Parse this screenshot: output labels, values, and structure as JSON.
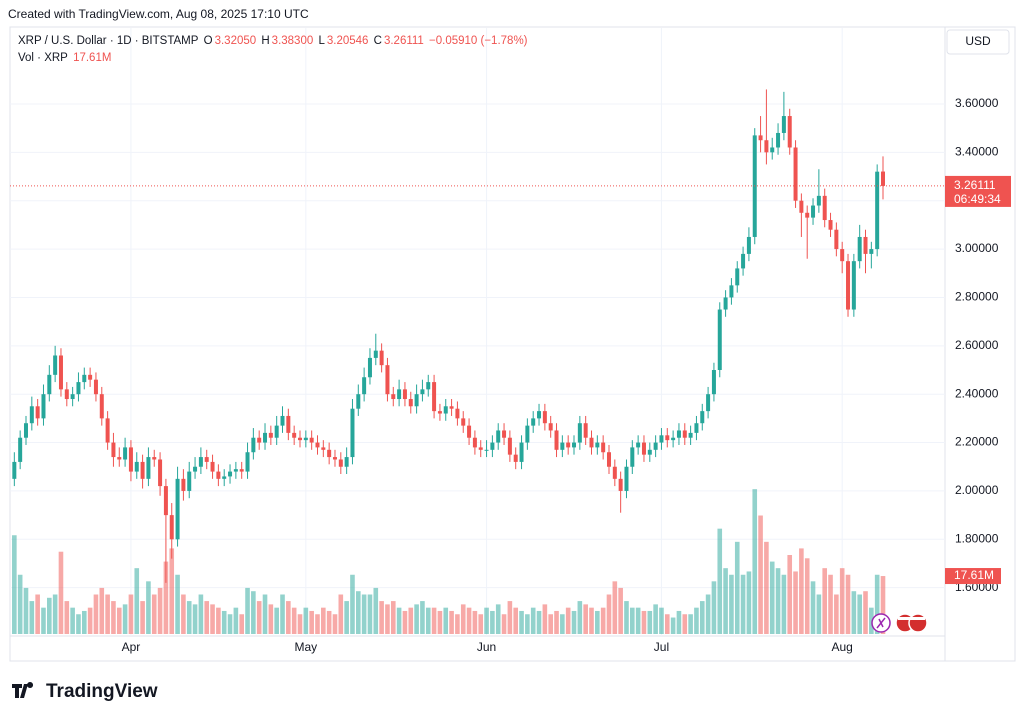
{
  "header": {
    "created": "Created with TradingView.com, Aug 08, 2025 17:10 UTC",
    "symbol": "XRP / U.S. Dollar · 1D · BITSTAMP",
    "o": "O",
    "open": "3.32050",
    "h": "H",
    "high": "3.38300",
    "l": "L",
    "low": "3.20546",
    "c": "C",
    "close": "3.26111",
    "change": "−0.05910 (−1.78%)",
    "vol_title": "Vol · XRP",
    "volume": "17.61M",
    "currency": "USD",
    "price_label": "3.26111",
    "countdown": "06:49:34",
    "logo": "TradingView"
  },
  "chart_data": {
    "type": "candlestick",
    "up_color": "#26a69a",
    "down_color": "#ef5350",
    "grid": true,
    "ylim": [
      1.301,
      3.914
    ],
    "yticks": [
      {
        "value": 1.6,
        "label": "1.60000"
      },
      {
        "value": 1.8,
        "label": "1.80000"
      },
      {
        "value": 2.0,
        "label": "2.00000"
      },
      {
        "value": 2.2,
        "label": "2.20000"
      },
      {
        "value": 2.4,
        "label": "2.40000"
      },
      {
        "value": 2.6,
        "label": "2.60000"
      },
      {
        "value": 2.8,
        "label": "2.80000"
      },
      {
        "value": 3.0,
        "label": "3.00000"
      },
      {
        "value": 3.2,
        "label": "3.20000"
      },
      {
        "value": 3.4,
        "label": "3.40000"
      },
      {
        "value": 3.6,
        "label": "3.60000"
      }
    ],
    "volume_ylim": [
      0,
      48
    ],
    "last_price": 3.26111,
    "categories": [
      null,
      null,
      null,
      null,
      null,
      null,
      null,
      null,
      null,
      null,
      null,
      null,
      null,
      null,
      null,
      null,
      null,
      null,
      null,
      null,
      "Apr",
      null,
      null,
      null,
      null,
      null,
      null,
      null,
      null,
      null,
      null,
      null,
      null,
      null,
      null,
      null,
      null,
      null,
      null,
      null,
      null,
      null,
      null,
      null,
      null,
      null,
      null,
      null,
      null,
      null,
      "May",
      null,
      null,
      null,
      null,
      null,
      null,
      null,
      null,
      null,
      null,
      null,
      null,
      null,
      null,
      null,
      null,
      null,
      null,
      null,
      null,
      null,
      null,
      null,
      null,
      null,
      null,
      null,
      null,
      null,
      null,
      "Jun",
      null,
      null,
      null,
      null,
      null,
      null,
      null,
      null,
      null,
      null,
      null,
      null,
      null,
      null,
      null,
      null,
      null,
      null,
      null,
      null,
      null,
      null,
      null,
      null,
      null,
      null,
      null,
      null,
      null,
      "Jul",
      null,
      null,
      null,
      null,
      null,
      null,
      null,
      null,
      null,
      null,
      null,
      null,
      null,
      null,
      null,
      null,
      null,
      null,
      null,
      null,
      null,
      null,
      null,
      null,
      null,
      null,
      null,
      null,
      null,
      null,
      "Aug",
      null,
      null,
      null,
      null,
      null,
      null,
      null
    ],
    "ohlc": [
      [
        2.05,
        2.16,
        2.02,
        2.12
      ],
      [
        2.12,
        2.25,
        2.09,
        2.22
      ],
      [
        2.22,
        2.31,
        2.19,
        2.28
      ],
      [
        2.28,
        2.39,
        2.25,
        2.35
      ],
      [
        2.35,
        2.38,
        2.27,
        2.3
      ],
      [
        2.3,
        2.44,
        2.27,
        2.4
      ],
      [
        2.4,
        2.52,
        2.37,
        2.48
      ],
      [
        2.48,
        2.6,
        2.45,
        2.56
      ],
      [
        2.56,
        2.59,
        2.39,
        2.42
      ],
      [
        2.42,
        2.45,
        2.35,
        2.38
      ],
      [
        2.38,
        2.43,
        2.35,
        2.4
      ],
      [
        2.4,
        2.49,
        2.37,
        2.45
      ],
      [
        2.45,
        2.51,
        2.42,
        2.48
      ],
      [
        2.48,
        2.51,
        2.43,
        2.46
      ],
      [
        2.46,
        2.49,
        2.37,
        2.4
      ],
      [
        2.4,
        2.43,
        2.27,
        2.3
      ],
      [
        2.3,
        2.33,
        2.17,
        2.2
      ],
      [
        2.2,
        2.24,
        2.1,
        2.14
      ],
      [
        2.14,
        2.18,
        2.1,
        2.13
      ],
      [
        2.13,
        2.22,
        2.1,
        2.18
      ],
      [
        2.18,
        2.21,
        2.04,
        2.08
      ],
      [
        2.08,
        2.16,
        2.05,
        2.12
      ],
      [
        2.12,
        2.15,
        2.01,
        2.05
      ],
      [
        2.05,
        2.18,
        2.02,
        2.14
      ],
      [
        2.14,
        2.17,
        2.1,
        2.13
      ],
      [
        2.13,
        2.16,
        1.98,
        2.02
      ],
      [
        2.02,
        2.05,
        1.62,
        1.9
      ],
      [
        1.9,
        1.95,
        1.72,
        1.8
      ],
      [
        1.8,
        2.1,
        1.77,
        2.05
      ],
      [
        2.05,
        2.09,
        1.96,
        2.0
      ],
      [
        2.0,
        2.12,
        1.97,
        2.08
      ],
      [
        2.08,
        2.14,
        2.05,
        2.1
      ],
      [
        2.1,
        2.18,
        2.07,
        2.14
      ],
      [
        2.14,
        2.17,
        2.09,
        2.12
      ],
      [
        2.12,
        2.15,
        2.05,
        2.08
      ],
      [
        2.08,
        2.11,
        2.02,
        2.05
      ],
      [
        2.05,
        2.09,
        2.02,
        2.06
      ],
      [
        2.06,
        2.11,
        2.03,
        2.08
      ],
      [
        2.08,
        2.12,
        2.05,
        2.09
      ],
      [
        2.09,
        2.12,
        2.05,
        2.08
      ],
      [
        2.08,
        2.2,
        2.05,
        2.16
      ],
      [
        2.16,
        2.26,
        2.13,
        2.22
      ],
      [
        2.22,
        2.25,
        2.17,
        2.2
      ],
      [
        2.2,
        2.28,
        2.17,
        2.24
      ],
      [
        2.24,
        2.27,
        2.19,
        2.22
      ],
      [
        2.22,
        2.31,
        2.19,
        2.27
      ],
      [
        2.27,
        2.35,
        2.24,
        2.31
      ],
      [
        2.31,
        2.34,
        2.21,
        2.24
      ],
      [
        2.24,
        2.27,
        2.19,
        2.22
      ],
      [
        2.22,
        2.25,
        2.18,
        2.21
      ],
      [
        2.21,
        2.25,
        2.18,
        2.22
      ],
      [
        2.22,
        2.25,
        2.17,
        2.2
      ],
      [
        2.2,
        2.23,
        2.15,
        2.18
      ],
      [
        2.18,
        2.21,
        2.14,
        2.17
      ],
      [
        2.17,
        2.2,
        2.11,
        2.14
      ],
      [
        2.14,
        2.17,
        2.1,
        2.13
      ],
      [
        2.13,
        2.16,
        2.07,
        2.1
      ],
      [
        2.1,
        2.18,
        2.07,
        2.14
      ],
      [
        2.14,
        2.38,
        2.11,
        2.34
      ],
      [
        2.34,
        2.44,
        2.31,
        2.4
      ],
      [
        2.4,
        2.51,
        2.37,
        2.47
      ],
      [
        2.47,
        2.59,
        2.44,
        2.55
      ],
      [
        2.55,
        2.65,
        2.52,
        2.58
      ],
      [
        2.58,
        2.61,
        2.49,
        2.52
      ],
      [
        2.52,
        2.55,
        2.37,
        2.4
      ],
      [
        2.4,
        2.43,
        2.35,
        2.38
      ],
      [
        2.38,
        2.46,
        2.35,
        2.42
      ],
      [
        2.42,
        2.45,
        2.35,
        2.38
      ],
      [
        2.38,
        2.41,
        2.32,
        2.35
      ],
      [
        2.35,
        2.44,
        2.32,
        2.4
      ],
      [
        2.4,
        2.46,
        2.37,
        2.42
      ],
      [
        2.42,
        2.48,
        2.39,
        2.45
      ],
      [
        2.45,
        2.48,
        2.3,
        2.33
      ],
      [
        2.33,
        2.36,
        2.29,
        2.32
      ],
      [
        2.32,
        2.38,
        2.29,
        2.35
      ],
      [
        2.35,
        2.38,
        2.31,
        2.34
      ],
      [
        2.34,
        2.37,
        2.27,
        2.3
      ],
      [
        2.3,
        2.33,
        2.24,
        2.27
      ],
      [
        2.27,
        2.3,
        2.19,
        2.22
      ],
      [
        2.22,
        2.25,
        2.15,
        2.18
      ],
      [
        2.18,
        2.21,
        2.14,
        2.17
      ],
      [
        2.17,
        2.21,
        2.14,
        2.17
      ],
      [
        2.17,
        2.23,
        2.14,
        2.2
      ],
      [
        2.2,
        2.28,
        2.17,
        2.25
      ],
      [
        2.25,
        2.28,
        2.19,
        2.22
      ],
      [
        2.22,
        2.25,
        2.12,
        2.15
      ],
      [
        2.15,
        2.18,
        2.09,
        2.12
      ],
      [
        2.12,
        2.23,
        2.09,
        2.2
      ],
      [
        2.2,
        2.3,
        2.17,
        2.27
      ],
      [
        2.27,
        2.33,
        2.24,
        2.3
      ],
      [
        2.3,
        2.36,
        2.27,
        2.33
      ],
      [
        2.33,
        2.36,
        2.25,
        2.28
      ],
      [
        2.28,
        2.31,
        2.22,
        2.25
      ],
      [
        2.25,
        2.28,
        2.14,
        2.17
      ],
      [
        2.17,
        2.23,
        2.14,
        2.2
      ],
      [
        2.2,
        2.23,
        2.15,
        2.18
      ],
      [
        2.18,
        2.23,
        2.15,
        2.2
      ],
      [
        2.2,
        2.31,
        2.17,
        2.28
      ],
      [
        2.28,
        2.31,
        2.19,
        2.22
      ],
      [
        2.22,
        2.25,
        2.15,
        2.18
      ],
      [
        2.18,
        2.23,
        2.15,
        2.2
      ],
      [
        2.2,
        2.23,
        2.13,
        2.16
      ],
      [
        2.16,
        2.19,
        2.07,
        2.1
      ],
      [
        2.1,
        2.13,
        2.02,
        2.05
      ],
      [
        2.05,
        2.08,
        1.91,
        2.0
      ],
      [
        2.0,
        2.13,
        1.97,
        2.1
      ],
      [
        2.1,
        2.21,
        2.07,
        2.18
      ],
      [
        2.18,
        2.23,
        2.15,
        2.2
      ],
      [
        2.2,
        2.23,
        2.12,
        2.15
      ],
      [
        2.15,
        2.2,
        2.12,
        2.17
      ],
      [
        2.17,
        2.23,
        2.14,
        2.2
      ],
      [
        2.2,
        2.26,
        2.17,
        2.23
      ],
      [
        2.23,
        2.26,
        2.18,
        2.21
      ],
      [
        2.21,
        2.25,
        2.18,
        2.22
      ],
      [
        2.22,
        2.28,
        2.19,
        2.25
      ],
      [
        2.25,
        2.28,
        2.19,
        2.22
      ],
      [
        2.22,
        2.27,
        2.19,
        2.24
      ],
      [
        2.24,
        2.31,
        2.21,
        2.28
      ],
      [
        2.28,
        2.36,
        2.25,
        2.33
      ],
      [
        2.33,
        2.43,
        2.3,
        2.4
      ],
      [
        2.4,
        2.53,
        2.37,
        2.5
      ],
      [
        2.5,
        2.78,
        2.47,
        2.75
      ],
      [
        2.75,
        2.83,
        2.72,
        2.8
      ],
      [
        2.8,
        2.88,
        2.77,
        2.85
      ],
      [
        2.85,
        2.95,
        2.82,
        2.92
      ],
      [
        2.92,
        3.01,
        2.89,
        2.98
      ],
      [
        2.98,
        3.09,
        2.95,
        3.05
      ],
      [
        3.05,
        3.5,
        3.02,
        3.47
      ],
      [
        3.47,
        3.55,
        3.4,
        3.45
      ],
      [
        3.45,
        3.66,
        3.35,
        3.4
      ],
      [
        3.4,
        3.46,
        3.37,
        3.42
      ],
      [
        3.42,
        3.52,
        3.39,
        3.48
      ],
      [
        3.48,
        3.65,
        3.45,
        3.55
      ],
      [
        3.55,
        3.58,
        3.39,
        3.42
      ],
      [
        3.42,
        3.45,
        3.17,
        3.2
      ],
      [
        3.2,
        3.23,
        3.05,
        3.15
      ],
      [
        3.15,
        3.18,
        2.96,
        3.13
      ],
      [
        3.13,
        3.21,
        3.1,
        3.18
      ],
      [
        3.18,
        3.33,
        3.15,
        3.22
      ],
      [
        3.22,
        3.25,
        3.09,
        3.12
      ],
      [
        3.12,
        3.15,
        3.05,
        3.08
      ],
      [
        3.08,
        3.11,
        2.97,
        3.0
      ],
      [
        3.0,
        3.03,
        2.9,
        2.95
      ],
      [
        2.95,
        2.98,
        2.72,
        2.75
      ],
      [
        2.75,
        2.98,
        2.72,
        2.95
      ],
      [
        2.95,
        3.1,
        2.92,
        3.05
      ],
      [
        3.05,
        3.08,
        2.9,
        2.98
      ],
      [
        2.98,
        3.03,
        2.92,
        3.0
      ],
      [
        3.0,
        3.35,
        2.97,
        3.32
      ],
      [
        3.3205,
        3.383,
        3.20546,
        3.26111
      ]
    ],
    "volume": [
      30,
      18,
      14,
      10,
      12,
      8,
      11,
      12,
      25,
      10,
      8,
      6,
      7,
      8,
      12,
      14,
      12,
      10,
      8,
      9,
      12,
      20,
      10,
      16,
      12,
      14,
      22,
      26,
      18,
      12,
      10,
      9,
      12,
      10,
      9,
      8,
      7,
      6,
      8,
      6,
      14,
      13,
      10,
      12,
      9,
      8,
      12,
      10,
      8,
      6,
      8,
      7,
      6,
      8,
      7,
      6,
      12,
      10,
      18,
      13,
      12,
      12,
      14,
      10,
      9,
      10,
      8,
      7,
      8,
      9,
      10,
      8,
      8,
      7,
      8,
      7,
      6,
      9,
      8,
      7,
      6,
      8,
      7,
      9,
      6,
      10,
      8,
      7,
      6,
      8,
      7,
      9,
      6,
      7,
      6,
      8,
      7,
      10,
      9,
      8,
      7,
      8,
      12,
      16,
      14,
      10,
      8,
      8,
      7,
      7,
      9,
      8,
      6,
      5,
      7,
      6,
      6,
      8,
      10,
      12,
      16,
      32,
      20,
      18,
      28,
      18,
      19,
      44,
      36,
      28,
      22,
      20,
      18,
      24,
      19,
      26,
      23,
      16,
      12,
      20,
      18,
      12,
      20,
      18,
      13,
      12,
      13,
      8,
      18,
      17.61
    ]
  }
}
